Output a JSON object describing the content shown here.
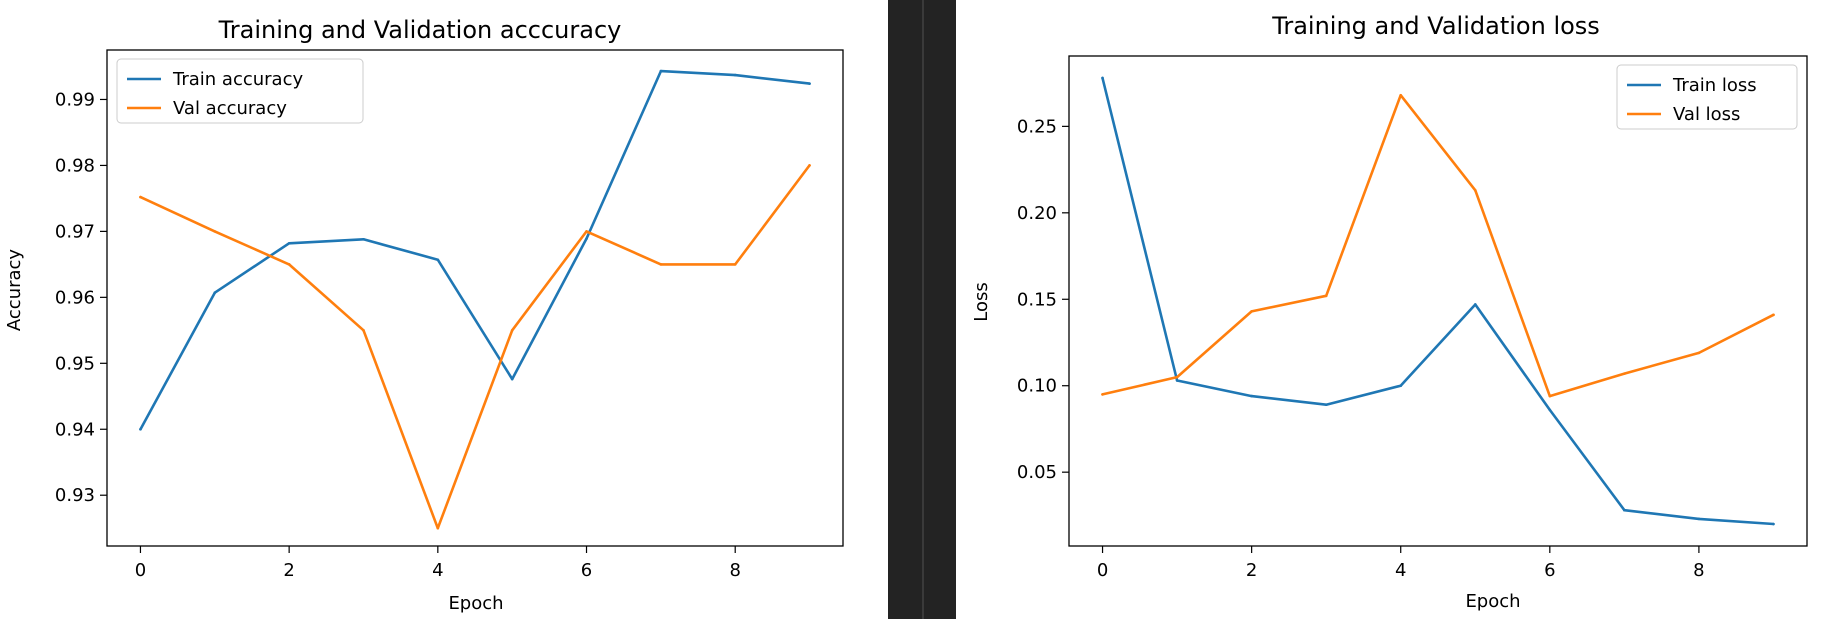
{
  "chart_data": [
    {
      "type": "line",
      "title": "Training and Validation acccuracy",
      "xlabel": "Epoch",
      "ylabel": "Accuracy",
      "xlim": [
        -0.45,
        9.45
      ],
      "ylim": [
        0.9223,
        0.9975
      ],
      "xticks": [
        0,
        2,
        4,
        6,
        8
      ],
      "yticks": [
        0.93,
        0.94,
        0.95,
        0.96,
        0.97,
        0.98,
        0.99
      ],
      "grid": false,
      "legend": "top-left",
      "x": [
        0,
        1,
        2,
        3,
        4,
        5,
        6,
        7,
        8,
        9
      ],
      "series": [
        {
          "name": "Train accuracy",
          "color": "#1f77b4",
          "values": [
            0.94,
            0.9607,
            0.9682,
            0.9688,
            0.9657,
            0.9476,
            0.9689,
            0.9943,
            0.9937,
            0.9924
          ]
        },
        {
          "name": "Val accuracy",
          "color": "#ff7f0e",
          "values": [
            0.9752,
            0.97,
            0.965,
            0.955,
            0.925,
            0.955,
            0.97,
            0.965,
            0.965,
            0.98
          ]
        }
      ]
    },
    {
      "type": "line",
      "title": "Training and Validation loss",
      "xlabel": "Epoch",
      "ylabel": "Loss",
      "xlim": [
        -0.45,
        9.45
      ],
      "ylim": [
        0.0073,
        0.2907
      ],
      "xticks": [
        0,
        2,
        4,
        6,
        8
      ],
      "yticks": [
        0.05,
        0.1,
        0.15,
        0.2,
        0.25
      ],
      "ytick_format": 2,
      "grid": false,
      "legend": "top-right",
      "x": [
        0,
        1,
        2,
        3,
        4,
        5,
        6,
        7,
        8,
        9
      ],
      "series": [
        {
          "name": "Train loss",
          "color": "#1f77b4",
          "values": [
            0.278,
            0.103,
            0.094,
            0.089,
            0.1,
            0.147,
            0.086,
            0.028,
            0.023,
            0.02
          ]
        },
        {
          "name": "Val loss",
          "color": "#ff7f0e",
          "values": [
            0.095,
            0.105,
            0.143,
            0.152,
            0.268,
            0.213,
            0.094,
            0.107,
            0.119,
            0.141
          ]
        }
      ]
    }
  ]
}
